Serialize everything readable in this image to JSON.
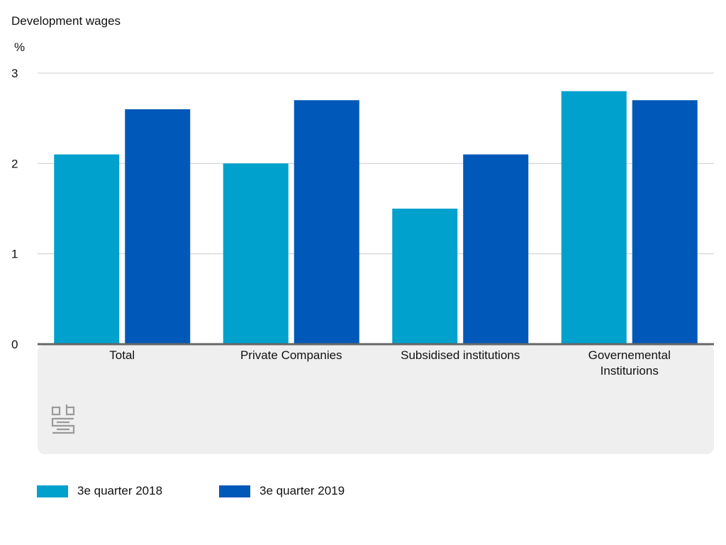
{
  "chart_data": {
    "type": "bar",
    "title": "Development wages",
    "ylabel": "%",
    "xlabel": "",
    "ylim": [
      0,
      3
    ],
    "yticks": [
      0,
      1,
      2,
      3
    ],
    "categories": [
      [
        "Total"
      ],
      [
        "Private Companies"
      ],
      [
        "Subsidised institutions"
      ],
      [
        "Governemental",
        "Institurions"
      ]
    ],
    "series": [
      {
        "name": "3e quarter 2018",
        "color": "#00A1CD",
        "values": [
          2.1,
          2.0,
          1.5,
          2.8
        ]
      },
      {
        "name": "3e quarter 2019",
        "color": "#0058B8",
        "values": [
          2.6,
          2.7,
          2.1,
          2.7
        ]
      }
    ],
    "grid": true,
    "legend_position": "bottom-left",
    "logo": "cbs-logo"
  }
}
